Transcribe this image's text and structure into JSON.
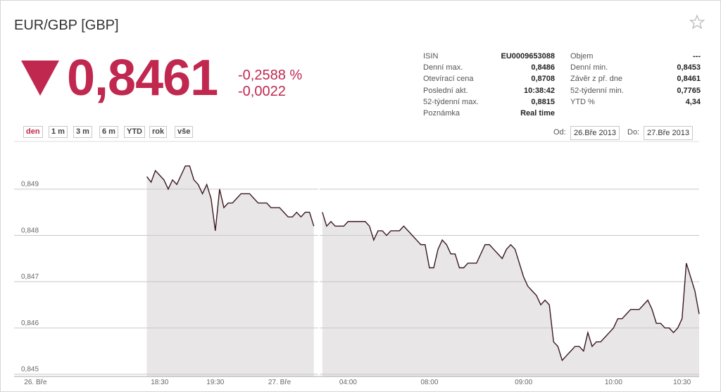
{
  "header": {
    "title": "EUR/GBP [GBP]",
    "price": "0,8461",
    "change_percent": "-0,2588 %",
    "change_abs": "-0,0022"
  },
  "stats": {
    "left": [
      [
        "ISIN",
        "EU0009653088"
      ],
      [
        "Denní max.",
        "0,8486"
      ],
      [
        "Otevírací cena",
        "0,8708"
      ],
      [
        "Poslední akt.",
        "10:38:42"
      ],
      [
        "52-týdenní max.",
        "0,8815"
      ],
      [
        "Poznámka",
        "Real time"
      ]
    ],
    "right": [
      [
        "Objem",
        "---"
      ],
      [
        "Denní min.",
        "0,8453"
      ],
      [
        "Závěr z př. dne",
        "0,8461"
      ],
      [
        "52-týdenní min.",
        "0,7765"
      ],
      [
        "YTD %",
        "4,34"
      ]
    ]
  },
  "ranges": [
    "den",
    "1 m",
    "3 m",
    "6 m",
    "YTD",
    "rok",
    "vše"
  ],
  "dates": {
    "from_label": "Od:",
    "from": "26.Bře 2013",
    "to_label": "Do:",
    "to": "27.Bře 2013"
  },
  "chart_data": {
    "type": "area",
    "color": "#3b1820",
    "area_color": "#e8e6e7",
    "grid": true,
    "categories": [
      null,
      null,
      null,
      null,
      null,
      "26. Bře",
      null,
      null,
      null,
      null,
      null,
      null,
      null,
      null,
      null,
      null,
      null,
      null,
      null,
      null,
      null,
      null,
      null,
      null,
      null,
      null,
      null,
      null,
      null,
      null,
      null,
      null,
      null,
      null,
      "18:30",
      null,
      null,
      null,
      null,
      null,
      null,
      null,
      null,
      null,
      null,
      null,
      null,
      "19:30",
      null,
      null,
      null,
      null,
      null,
      null,
      null,
      null,
      null,
      null,
      null,
      null,
      null,
      null,
      "27. Bře",
      null,
      null,
      null,
      null,
      null,
      null,
      null,
      null,
      null,
      null,
      null,
      null,
      null,
      null,
      null,
      "04:00",
      null,
      null,
      null,
      null,
      null,
      null,
      null,
      null,
      null,
      null,
      null,
      null,
      null,
      null,
      null,
      null,
      null,
      null,
      "08:00",
      null,
      null,
      null,
      null,
      null,
      null,
      null,
      null,
      null,
      null,
      null,
      null,
      null,
      null,
      null,
      null,
      null,
      null,
      null,
      null,
      null,
      "09:00",
      null,
      null,
      null,
      null,
      null,
      null,
      null,
      null,
      null,
      null,
      null,
      null,
      null,
      null,
      null,
      null,
      null,
      null,
      null,
      null,
      "10:00",
      null,
      null,
      null,
      null,
      null,
      null,
      null,
      null,
      null,
      null,
      null,
      null,
      null,
      null,
      null,
      "10:30",
      null,
      null,
      null,
      null
    ],
    "values": [
      null,
      null,
      null,
      null,
      null,
      null,
      null,
      null,
      null,
      null,
      null,
      null,
      null,
      null,
      null,
      null,
      null,
      null,
      null,
      null,
      null,
      null,
      null,
      null,
      null,
      null,
      null,
      null,
      null,
      null,
      null,
      0.84927,
      0.84915,
      0.8494,
      0.8493,
      0.8492,
      0.849,
      0.8492,
      0.8491,
      0.8493,
      0.8495,
      0.8495,
      0.8492,
      0.8491,
      0.8489,
      0.8491,
      0.8488,
      0.8481,
      0.849,
      0.8486,
      0.8487,
      0.8487,
      0.8488,
      0.8489,
      0.8489,
      0.8489,
      0.8488,
      0.8487,
      0.8487,
      0.8487,
      0.8486,
      0.8486,
      0.8486,
      0.8485,
      0.8484,
      0.8484,
      0.8485,
      0.8484,
      0.8485,
      0.8485,
      0.8482,
      null,
      0.8485,
      0.8482,
      0.8483,
      0.8482,
      0.8482,
      0.8482,
      0.8483,
      0.8483,
      0.8483,
      0.8483,
      0.8483,
      0.8482,
      0.8479,
      0.8481,
      0.8481,
      0.848,
      0.8481,
      0.8481,
      0.8481,
      0.8482,
      0.8481,
      0.848,
      0.8479,
      0.8478,
      0.8478,
      0.8473,
      0.8473,
      0.8477,
      0.8479,
      0.8478,
      0.8476,
      0.8476,
      0.8473,
      0.8473,
      0.8474,
      0.8474,
      0.8474,
      0.8476,
      0.8478,
      0.8478,
      0.8477,
      0.8476,
      0.8475,
      0.8477,
      0.8478,
      0.8477,
      0.8474,
      0.8471,
      0.8469,
      0.8468,
      0.8467,
      0.8465,
      0.8466,
      0.8465,
      0.8457,
      0.8456,
      0.8453,
      0.8454,
      0.8455,
      0.8456,
      0.8456,
      0.8455,
      0.8459,
      0.8456,
      0.8457,
      0.8457,
      0.8458,
      0.8459,
      0.846,
      0.8462,
      0.8462,
      0.8463,
      0.8464,
      0.8464,
      0.8464,
      0.8465,
      0.8466,
      0.8464,
      0.8461,
      0.8461,
      0.846,
      0.846,
      0.8459,
      0.846,
      0.8462,
      0.8474,
      0.8471,
      0.8468,
      0.8463
    ],
    "ylim": [
      0.84495,
      0.85003
    ],
    "yticks": [
      {
        "value": 0.845,
        "label": "0,845"
      },
      {
        "value": 0.846,
        "label": "0,846"
      },
      {
        "value": 0.847,
        "label": "0,847"
      },
      {
        "value": 0.848,
        "label": "0,848"
      },
      {
        "value": 0.849,
        "label": "0,849"
      }
    ]
  }
}
